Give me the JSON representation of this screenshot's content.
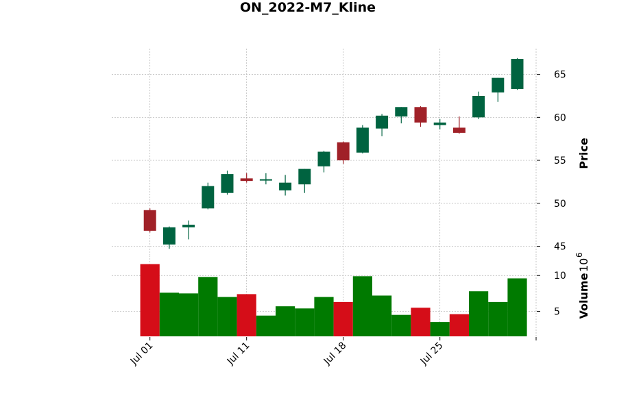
{
  "chart_data": {
    "type": "candlestick",
    "title": "ON_2022-M7_Kline",
    "price_label": "Price",
    "volume_label": "Volume",
    "volume_exponent": "10",
    "volume_exponent_power": "6",
    "price_ticks": [
      "45",
      "50",
      "55",
      "60",
      "65"
    ],
    "volume_ticks": [
      "5",
      "10"
    ],
    "price_ylim": [
      44,
      68
    ],
    "volume_ylim": [
      1.5,
      12.8
    ],
    "x_ticks": [
      {
        "label": "Jul 01",
        "index": 0
      },
      {
        "label": "Jul 11",
        "index": 5
      },
      {
        "label": "Jul 18",
        "index": 10
      },
      {
        "label": "Jul 25",
        "index": 15
      }
    ],
    "colors": {
      "up": "#006340",
      "down": "#a02128",
      "vol_up": "#007a00",
      "vol_down": "#d50d18"
    },
    "candles": [
      {
        "date": "2022-07-01",
        "open": 49.2,
        "high": 49.4,
        "low": 46.6,
        "close": 46.8,
        "volume": 11.6
      },
      {
        "date": "2022-07-05",
        "open": 45.2,
        "high": 47.3,
        "low": 44.7,
        "close": 47.2,
        "volume": 7.6
      },
      {
        "date": "2022-07-06",
        "open": 47.2,
        "high": 48.0,
        "low": 45.8,
        "close": 47.5,
        "volume": 7.5
      },
      {
        "date": "2022-07-07",
        "open": 49.4,
        "high": 52.4,
        "low": 49.3,
        "close": 52.0,
        "volume": 9.8
      },
      {
        "date": "2022-07-08",
        "open": 51.2,
        "high": 53.8,
        "low": 51.0,
        "close": 53.4,
        "volume": 7.0
      },
      {
        "date": "2022-07-11",
        "open": 52.9,
        "high": 53.5,
        "low": 52.4,
        "close": 52.6,
        "volume": 7.4
      },
      {
        "date": "2022-07-12",
        "open": 52.7,
        "high": 53.5,
        "low": 52.2,
        "close": 52.8,
        "volume": 4.4
      },
      {
        "date": "2022-07-13",
        "open": 51.5,
        "high": 53.3,
        "low": 50.9,
        "close": 52.4,
        "volume": 5.7
      },
      {
        "date": "2022-07-14",
        "open": 52.2,
        "high": 54.0,
        "low": 51.2,
        "close": 54.0,
        "volume": 5.4
      },
      {
        "date": "2022-07-15",
        "open": 54.3,
        "high": 56.1,
        "low": 53.6,
        "close": 56.0,
        "volume": 7.0
      },
      {
        "date": "2022-07-18",
        "open": 57.1,
        "high": 57.2,
        "low": 54.6,
        "close": 55.0,
        "volume": 6.3
      },
      {
        "date": "2022-07-19",
        "open": 55.9,
        "high": 59.1,
        "low": 55.8,
        "close": 58.8,
        "volume": 9.9
      },
      {
        "date": "2022-07-20",
        "open": 58.7,
        "high": 60.4,
        "low": 57.8,
        "close": 60.2,
        "volume": 7.2
      },
      {
        "date": "2022-07-21",
        "open": 60.1,
        "high": 61.2,
        "low": 59.3,
        "close": 61.2,
        "volume": 4.5
      },
      {
        "date": "2022-07-22",
        "open": 61.2,
        "high": 61.3,
        "low": 58.9,
        "close": 59.4,
        "volume": 5.5
      },
      {
        "date": "2022-07-25",
        "open": 59.1,
        "high": 59.8,
        "low": 58.6,
        "close": 59.4,
        "volume": 3.5
      },
      {
        "date": "2022-07-26",
        "open": 58.8,
        "high": 60.1,
        "low": 58.1,
        "close": 58.2,
        "volume": 4.6
      },
      {
        "date": "2022-07-27",
        "open": 60.0,
        "high": 63.0,
        "low": 59.8,
        "close": 62.5,
        "volume": 7.8
      },
      {
        "date": "2022-07-28",
        "open": 62.9,
        "high": 64.6,
        "low": 61.8,
        "close": 64.6,
        "volume": 6.3
      },
      {
        "date": "2022-07-29",
        "open": 63.3,
        "high": 66.9,
        "low": 63.2,
        "close": 66.8,
        "volume": 9.6
      }
    ]
  }
}
